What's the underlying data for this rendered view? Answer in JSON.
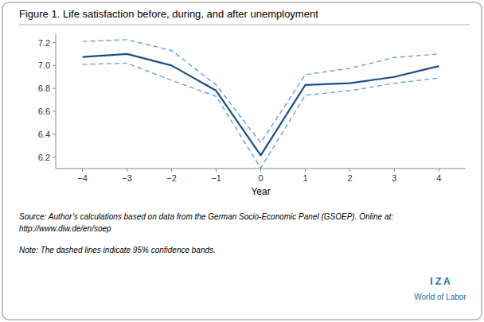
{
  "chart_data": {
    "type": "line",
    "title": "Figure 1. Life satisfaction before, during, and after unemployment",
    "x_label": "Year",
    "x": [
      -4,
      -3,
      -2,
      -1,
      0,
      1,
      2,
      3,
      4
    ],
    "series": [
      {
        "color": "#6a9fd8",
        "line_style": "dashed",
        "values": [
          7.21,
          7.225,
          7.13,
          6.83,
          6.325,
          6.92,
          6.975,
          7.07,
          7.1
        ]
      },
      {
        "color": "#6a9fd8",
        "line_style": "dashed",
        "values": [
          7.01,
          7.02,
          6.87,
          6.73,
          6.105,
          6.74,
          6.78,
          6.845,
          6.89
        ]
      },
      {
        "color": "#1a4f8a",
        "line_style": "solid",
        "values": [
          7.075,
          7.1,
          7.0,
          6.78,
          6.215,
          6.83,
          6.845,
          6.9,
          6.995
        ]
      }
    ],
    "xlim": [
      -4.6,
      4.6
    ],
    "ylim": [
      6.1,
      7.28
    ],
    "xticks": [
      {
        "value": -4,
        "label": "−4"
      },
      {
        "value": -3,
        "label": "−3"
      },
      {
        "value": -2,
        "label": "−2"
      },
      {
        "value": -1,
        "label": "−1"
      },
      0,
      1,
      2,
      3,
      4
    ],
    "yticks": [
      6.2,
      6.4,
      6.6,
      6.8,
      {
        "value": 7.0,
        "label": "7.0"
      },
      7.2
    ],
    "grid": false,
    "annotations": [
      "Source: Author’s calculations based on data from the German Socio-Economic Panel (GSOEP). Online at:",
      "http://www.diw.de/en/soep",
      "Note: The dashed lines indicate 95% confidence bands.",
      "I Z A",
      "World of Labor"
    ]
  }
}
